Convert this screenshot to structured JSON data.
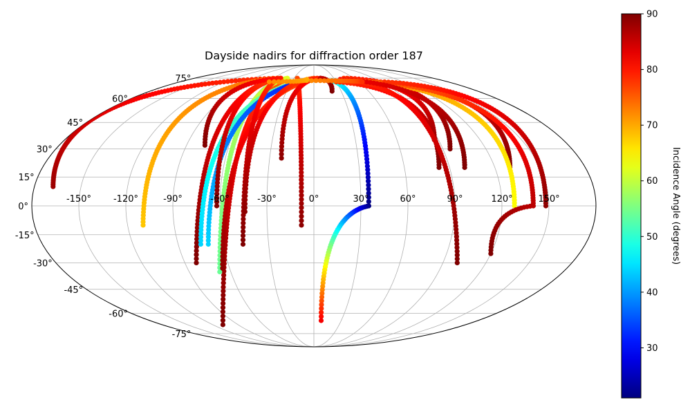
{
  "chart_data": {
    "type": "scatter",
    "projection": "mollweide",
    "title": "Dayside nadirs for diffraction order 187",
    "lon_ticks": [
      "-150°",
      "-120°",
      "-90°",
      "-60°",
      "-30°",
      "0°",
      "30°",
      "60°",
      "90°",
      "120°",
      "150°"
    ],
    "lon_tick_values": [
      -150,
      -120,
      -90,
      -60,
      -30,
      0,
      30,
      60,
      90,
      120,
      150
    ],
    "lat_ticks": [
      "75°",
      "60°",
      "45°",
      "30°",
      "15°",
      "0°",
      "-15°",
      "-30°",
      "-45°",
      "-60°",
      "-75°"
    ],
    "lat_tick_values": [
      75,
      60,
      45,
      30,
      15,
      0,
      -15,
      -30,
      -45,
      -60,
      -75
    ],
    "grid": true,
    "colorbar": {
      "label": "Incidence Angle (degrees)",
      "colormap": "jet",
      "range": [
        21,
        90
      ],
      "ticks": [
        "90",
        "80",
        "70",
        "60",
        "50",
        "40",
        "30"
      ],
      "tick_values": [
        90,
        80,
        70,
        60,
        50,
        40,
        30
      ]
    },
    "tracks": [
      {
        "apex_lon": -55,
        "apex_lat": 75,
        "end_lon": -168,
        "end_lat": 10,
        "i_apex": 78,
        "i_end": 88
      },
      {
        "apex_lon": -55,
        "apex_lat": 75,
        "end_lon": -110,
        "end_lat": -10,
        "i_apex": 74,
        "i_end": 68
      },
      {
        "apex_lon": -40,
        "apex_lat": 73,
        "end_lon": -108,
        "end_lat": -68,
        "i_apex": 74,
        "i_end": 90
      },
      {
        "apex_lon": -50,
        "apex_lat": 75,
        "end_lon": -82,
        "end_lat": -30,
        "i_apex": 78,
        "i_end": 90
      },
      {
        "apex_lon": -40,
        "apex_lat": 75,
        "end_lon": -68,
        "end_lat": -35,
        "i_apex": 62,
        "i_end": 54
      },
      {
        "apex_lon": 10,
        "apex_lat": 75,
        "end_lon": -75,
        "end_lat": -20,
        "i_apex": 56,
        "i_end": 44
      },
      {
        "apex_lon": 10,
        "apex_lat": 75,
        "end_lon": -70,
        "end_lat": -20,
        "i_apex": 30,
        "i_end": 44
      },
      {
        "apex_lon": 10,
        "apex_lat": 75,
        "end_lon": -65,
        "end_lat": -33,
        "i_apex": 74,
        "i_end": 89
      },
      {
        "apex_lon": -50,
        "apex_lat": 75,
        "end_lon": -47,
        "end_lat": -20,
        "i_apex": 76,
        "i_end": 90
      },
      {
        "apex_lon": -50,
        "apex_lat": 75,
        "end_lon": -62,
        "end_lat": 0,
        "i_apex": 76,
        "i_end": 90
      },
      {
        "apex_lon": 0,
        "apex_lat": 75,
        "end_lon": -44,
        "end_lat": -3,
        "i_apex": 76,
        "i_end": 89
      },
      {
        "apex_lon": -25,
        "apex_lat": 75,
        "end_lon": -8,
        "end_lat": -10,
        "i_apex": 76,
        "i_end": 89
      },
      {
        "apex_lon": 5,
        "apex_lat": 75,
        "end_lon": -22,
        "end_lat": 25,
        "i_apex": 79,
        "i_end": 89
      },
      {
        "apex_lon": -50,
        "apex_lat": 75,
        "end_lon": -77,
        "end_lat": 32,
        "i_apex": 80,
        "i_end": 90
      },
      {
        "apex_lon": 10,
        "apex_lat": 75,
        "end_lon": 20,
        "end_lat": 65,
        "i_apex": 85,
        "i_end": 90
      },
      {
        "apex_lon": 25,
        "apex_lat": 73,
        "end_lon": 35,
        "end_lat": 0,
        "i_apex": 50,
        "i_end": 21
      },
      {
        "apex_lon": 35,
        "apex_lat": 0,
        "end_lon": 8,
        "end_lat": -65,
        "i_apex": 21,
        "i_end": 82
      },
      {
        "apex_lon": 30,
        "apex_lat": 72,
        "end_lon": 83,
        "end_lat": 20,
        "i_apex": 78,
        "i_end": 90
      },
      {
        "apex_lon": 50,
        "apex_lat": 75,
        "end_lon": 95,
        "end_lat": 30,
        "i_apex": 80,
        "i_end": 90
      },
      {
        "apex_lon": 45,
        "apex_lat": 75,
        "end_lon": 87,
        "end_lat": 35,
        "i_apex": 78,
        "i_end": 88
      },
      {
        "apex_lon": 65,
        "apex_lat": 73,
        "end_lon": 130,
        "end_lat": 20,
        "i_apex": 78,
        "i_end": 90
      },
      {
        "apex_lon": 70,
        "apex_lat": 72,
        "end_lon": 128,
        "end_lat": 0,
        "i_apex": 72,
        "i_end": 64
      },
      {
        "apex_lon": 75,
        "apex_lat": 72,
        "end_lon": 140,
        "end_lat": 0,
        "i_apex": 74,
        "i_end": 86
      },
      {
        "apex_lon": 140,
        "apex_lat": 0,
        "end_lon": 120,
        "end_lat": -25,
        "i_apex": 86,
        "i_end": 90
      },
      {
        "apex_lon": 55,
        "apex_lat": 73,
        "end_lon": 100,
        "end_lat": -30,
        "i_apex": 78,
        "i_end": 90
      },
      {
        "apex_lon": 95,
        "apex_lat": 72,
        "end_lon": 148,
        "end_lat": 0,
        "i_apex": 78,
        "i_end": 89
      },
      {
        "apex_lon": 38,
        "apex_lat": 74,
        "end_lon": 100,
        "end_lat": 20,
        "i_apex": 82,
        "i_end": 90
      },
      {
        "apex_lon": -10,
        "apex_lat": 73,
        "end_lon": 65,
        "end_lat": 72,
        "i_apex": 72,
        "i_end": 78
      },
      {
        "apex_lon": -60,
        "apex_lat": 72,
        "end_lon": -10,
        "end_lat": 74,
        "i_apex": 72,
        "i_end": 70
      }
    ]
  }
}
